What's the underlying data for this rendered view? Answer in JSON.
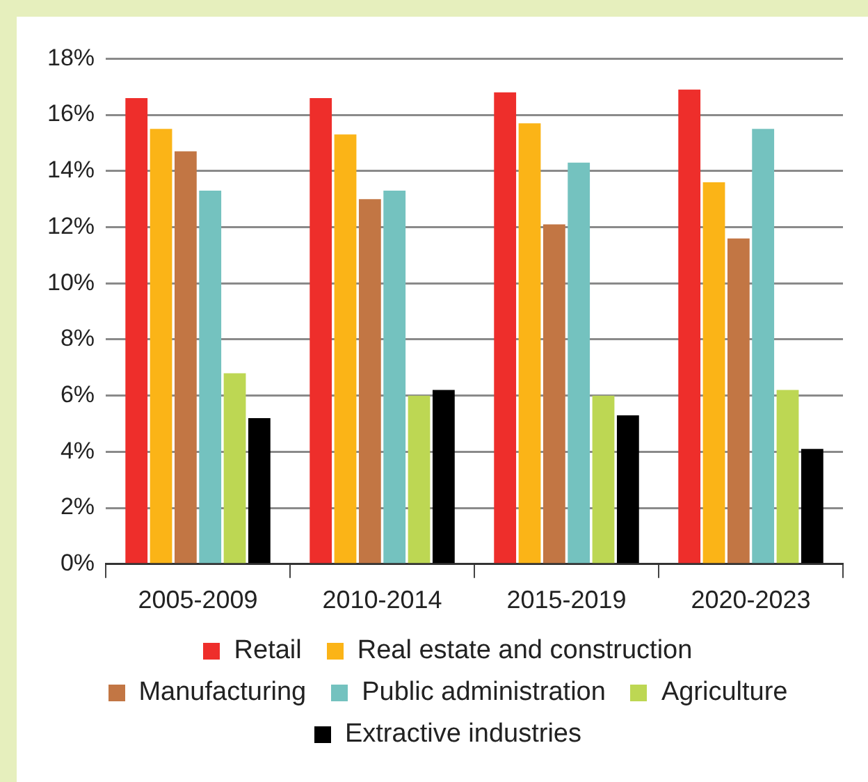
{
  "chart_data": {
    "type": "bar",
    "categories": [
      "2005-2009",
      "2010-2014",
      "2015-2019",
      "2020-2023"
    ],
    "series": [
      {
        "name": "Retail",
        "color": "#ee2e2b",
        "values": [
          16.6,
          16.6,
          16.8,
          16.9
        ]
      },
      {
        "name": "Real estate and construction",
        "color": "#fbb417",
        "values": [
          15.5,
          15.3,
          15.7,
          13.6
        ]
      },
      {
        "name": "Manufacturing",
        "color": "#c27644",
        "values": [
          14.7,
          13.0,
          12.1,
          11.6
        ]
      },
      {
        "name": "Public administration",
        "color": "#74c2bf",
        "values": [
          13.3,
          13.3,
          14.3,
          15.5
        ]
      },
      {
        "name": "Agriculture",
        "color": "#bdd753",
        "values": [
          6.8,
          6.0,
          6.0,
          6.2
        ]
      },
      {
        "name": "Extractive industries",
        "color": "#000000",
        "values": [
          5.2,
          6.2,
          5.3,
          4.1
        ]
      }
    ],
    "ylim": [
      0,
      18
    ],
    "yticks": [
      {
        "value": 0,
        "label": "0%"
      },
      {
        "value": 2,
        "label": "2%"
      },
      {
        "value": 4,
        "label": "4%"
      },
      {
        "value": 6,
        "label": "6%"
      },
      {
        "value": 8,
        "label": "8%"
      },
      {
        "value": 10,
        "label": "10%"
      },
      {
        "value": 12,
        "label": "12%"
      },
      {
        "value": 14,
        "label": "14%"
      },
      {
        "value": 16,
        "label": "16%"
      },
      {
        "value": 18,
        "label": "18%"
      }
    ],
    "grid": "y",
    "legend": "bottom"
  }
}
